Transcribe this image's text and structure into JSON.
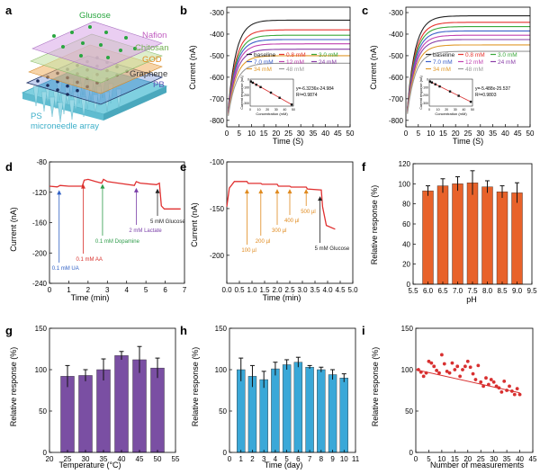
{
  "panels": {
    "a": {
      "letter": "a",
      "layers": [
        "Glusose",
        "Nafion",
        "Chitosan",
        "GOD",
        "Graphene",
        "PB",
        "PS",
        "microneedle array"
      ],
      "colors": {
        "glucose": "#2aa640",
        "nafion": "#c05cc0",
        "chitosan": "#6fae4f",
        "god": "#e38a1e",
        "graphene": "#333333",
        "pb": "#5b57b8",
        "ps": "#3dafc9"
      }
    },
    "b": {
      "letter": "b",
      "ylabel": "Current (nA)",
      "xlabel": "Time (S)",
      "xticks": [
        "0",
        "5",
        "10",
        "15",
        "20",
        "25",
        "30",
        "35",
        "40",
        "45",
        "50"
      ],
      "yticks": [
        "-300",
        "-400",
        "-500",
        "-600",
        "-700",
        "-800"
      ],
      "legend": [
        {
          "label": "baseline",
          "color": "#222222"
        },
        {
          "label": "0.8 mM",
          "color": "#e6322d"
        },
        {
          "label": "3.0 mM",
          "color": "#3aa83a"
        },
        {
          "label": "7.0 mM",
          "color": "#3b5fc8"
        },
        {
          "label": "12 mM",
          "color": "#c040b0"
        },
        {
          "label": "24 mM",
          "color": "#8a3fa8"
        },
        {
          "label": "34 mM",
          "color": "#e0992a"
        },
        {
          "label": "48 mM",
          "color": "#9a9a9a"
        }
      ],
      "curve_plateaus": [
        -335,
        -380,
        -405,
        -425,
        -445,
        -470,
        -500,
        -535
      ],
      "inset": {
        "ylabel": "Current response (nA)",
        "xlabel": "Concentration (mM)",
        "xticks": [
          "0",
          "10",
          "20",
          "30",
          "40",
          "50"
        ],
        "yticks": [
          "0",
          "-100",
          "-200",
          "-300"
        ],
        "equation": "y=-6.3236x-24.984",
        "r2": "R²=0.9874",
        "points": [
          [
            0.8,
            -30
          ],
          [
            3,
            -45
          ],
          [
            7,
            -70
          ],
          [
            12,
            -100
          ],
          [
            24,
            -170
          ],
          [
            34,
            -235
          ],
          [
            48,
            -320
          ]
        ]
      }
    },
    "c": {
      "letter": "c",
      "ylabel": "Current (nA)",
      "xlabel": "Time (S)",
      "xticks": [
        "0",
        "5",
        "10",
        "15",
        "20",
        "25",
        "30",
        "35",
        "40",
        "45",
        "50"
      ],
      "yticks": [
        "-300",
        "-400",
        "-500",
        "-600",
        "-700",
        "-800"
      ],
      "legend": [
        {
          "label": "baseline",
          "color": "#222222"
        },
        {
          "label": "0.8 mM",
          "color": "#e6322d"
        },
        {
          "label": "3.0 mM",
          "color": "#3aa83a"
        },
        {
          "label": "7.0 mM",
          "color": "#3b5fc8"
        },
        {
          "label": "12 mM",
          "color": "#c040b0"
        },
        {
          "label": "24 mM",
          "color": "#8a3fa8"
        },
        {
          "label": "34 mM",
          "color": "#e0992a"
        },
        {
          "label": "48 mM",
          "color": "#9a9a9a"
        }
      ],
      "curve_plateaus": [
        -315,
        -345,
        -365,
        -385,
        -405,
        -425,
        -450,
        -480
      ],
      "inset": {
        "ylabel": "Current response (nA)",
        "xlabel": "Concentration (mM)",
        "xticks": [
          "0",
          "10",
          "20",
          "30",
          "40",
          "50"
        ],
        "yticks": [
          "0",
          "-100",
          "-200",
          "-300"
        ],
        "equation": "y=-5.488x-25.537",
        "r2": "R²=0.9803",
        "points": [
          [
            0.8,
            -30
          ],
          [
            3,
            -42
          ],
          [
            7,
            -65
          ],
          [
            12,
            -92
          ],
          [
            24,
            -155
          ],
          [
            34,
            -210
          ],
          [
            48,
            -285
          ]
        ]
      }
    },
    "d": {
      "letter": "d",
      "ylabel": "Current (nA)",
      "xlabel": "Time (min)",
      "xlim": [
        0,
        7
      ],
      "ylim": [
        -240,
        -80
      ],
      "xticks": [
        "0",
        "1",
        "2",
        "3",
        "4",
        "5",
        "6",
        "7"
      ],
      "yticks": [
        "-80",
        "-120",
        "-160",
        "-200",
        "-240"
      ],
      "annotations": [
        {
          "label": "0.1 mM UA",
          "color": "#2f5fc4",
          "x": 0.5
        },
        {
          "label": "0.1 mM AA",
          "color": "#d8302b",
          "x": 1.75
        },
        {
          "label": "0.1 mM Dopamine",
          "color": "#2e9c4a",
          "x": 2.75
        },
        {
          "label": "2 mM Lactate",
          "color": "#7a3fa8",
          "x": 4.5
        },
        {
          "label": "5 mM Glucose",
          "color": "#222222",
          "x": 5.6
        }
      ]
    },
    "e": {
      "letter": "e",
      "ylabel": "Current (nA)",
      "xlabel": "Time (min)",
      "xlim": [
        0,
        5
      ],
      "ylim": [
        -230,
        -100
      ],
      "xticks": [
        "0.0",
        "0.5",
        "1.0",
        "1.5",
        "2.0",
        "2.5",
        "3.0",
        "3.5",
        "4.0",
        "4.5",
        "5.0"
      ],
      "yticks": [
        "-100",
        "-150",
        "-200"
      ],
      "annotations": [
        {
          "label": "100 µl",
          "color": "#e08a1e",
          "x": 0.8
        },
        {
          "label": "200 µl",
          "color": "#e08a1e",
          "x": 1.35
        },
        {
          "label": "300 µl",
          "color": "#e08a1e",
          "x": 2.0
        },
        {
          "label": "400 µl",
          "color": "#e08a1e",
          "x": 2.5
        },
        {
          "label": "500 µl",
          "color": "#e08a1e",
          "x": 3.15
        },
        {
          "label": "5 mM Glucose",
          "color": "#222222",
          "x": 3.7
        }
      ]
    },
    "f": {
      "letter": "f",
      "ylabel": "Relative response (%)",
      "xlabel": "pH",
      "xlim": [
        5.5,
        9.5
      ],
      "ylim": [
        0,
        120
      ],
      "xticks": [
        "5.5",
        "6.0",
        "6.5",
        "7.0",
        "7.5",
        "8.0",
        "8.5",
        "9.0",
        "9.5"
      ],
      "yticks": [
        "0",
        "20",
        "40",
        "60",
        "80",
        "100",
        "120"
      ],
      "bar_color": "#e8622a"
    },
    "g": {
      "letter": "g",
      "ylabel": "Relative response (%)",
      "xlabel": "Temperature (°C)",
      "xlim": [
        20,
        55
      ],
      "ylim": [
        0,
        150
      ],
      "xticks": [
        "20",
        "25",
        "30",
        "35",
        "40",
        "45",
        "50",
        "55"
      ],
      "yticks": [
        "0",
        "50",
        "100",
        "150"
      ],
      "bar_color": "#7a4fa3"
    },
    "h": {
      "letter": "h",
      "ylabel": "Relative response (%)",
      "xlabel": "Time (day)",
      "xlim": [
        0,
        11
      ],
      "ylim": [
        0,
        150
      ],
      "xticks": [
        "0",
        "1",
        "2",
        "3",
        "4",
        "5",
        "6",
        "7",
        "8",
        "9",
        "10",
        "11"
      ],
      "yticks": [
        "0",
        "50",
        "100",
        "150"
      ],
      "bar_color": "#3aa8d8"
    },
    "i": {
      "letter": "i",
      "ylabel": "Relative response (%)",
      "xlabel": "Number of measurements",
      "xlim": [
        0,
        45
      ],
      "ylim": [
        0,
        150
      ],
      "xticks": [
        "0",
        "5",
        "10",
        "15",
        "20",
        "25",
        "30",
        "35",
        "40",
        "45"
      ],
      "yticks": [
        "0",
        "50",
        "100",
        "150"
      ],
      "point_color": "#d83030"
    }
  },
  "chart_data": [
    {
      "panel": "f",
      "type": "bar",
      "x": [
        6.0,
        6.5,
        7.0,
        7.5,
        8.0,
        8.5,
        9.0
      ],
      "values": [
        93,
        98,
        100,
        101,
        97,
        92,
        91
      ],
      "errors": [
        5,
        7,
        7,
        12,
        6,
        6,
        10
      ],
      "xlabel": "pH",
      "ylabel": "Relative response (%)",
      "ylim": [
        0,
        120
      ]
    },
    {
      "panel": "g",
      "type": "bar",
      "x": [
        25,
        30,
        35,
        40,
        45,
        50
      ],
      "values": [
        92,
        93,
        100,
        117,
        112,
        102
      ],
      "errors": [
        13,
        7,
        13,
        5,
        16,
        12
      ],
      "xlabel": "Temperature (°C)",
      "ylabel": "Relative response (%)",
      "ylim": [
        0,
        150
      ]
    },
    {
      "panel": "h",
      "type": "bar",
      "x": [
        1,
        2,
        3,
        4,
        5,
        6,
        7,
        8,
        9,
        10
      ],
      "values": [
        100,
        92,
        88,
        101,
        106,
        109,
        103,
        100,
        94,
        90
      ],
      "errors": [
        14,
        13,
        10,
        8,
        6,
        6,
        2,
        3,
        6,
        5
      ],
      "xlabel": "Time (day)",
      "ylabel": "Relative response (%)",
      "ylim": [
        0,
        150
      ]
    },
    {
      "panel": "i",
      "type": "scatter",
      "x": [
        1,
        2,
        3,
        4,
        5,
        6,
        7,
        8,
        9,
        10,
        11,
        12,
        13,
        14,
        15,
        16,
        17,
        18,
        19,
        20,
        21,
        22,
        23,
        24,
        25,
        26,
        27,
        28,
        29,
        30,
        31,
        32,
        33,
        34,
        35,
        36,
        37,
        38,
        39,
        40
      ],
      "values": [
        100,
        97,
        92,
        96,
        110,
        108,
        104,
        99,
        96,
        118,
        107,
        98,
        96,
        108,
        100,
        104,
        92,
        100,
        104,
        110,
        103,
        95,
        88,
        105,
        85,
        80,
        90,
        82,
        88,
        85,
        80,
        78,
        73,
        86,
        75,
        80,
        74,
        70,
        77,
        70
      ],
      "fit": [
        [
          0,
          100
        ],
        [
          40,
          72
        ]
      ],
      "xlabel": "Number of measurements",
      "ylabel": "Relative response (%)",
      "ylim": [
        0,
        150
      ]
    }
  ]
}
